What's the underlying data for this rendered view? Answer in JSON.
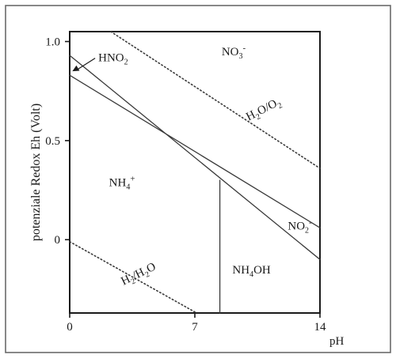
{
  "chart_data": {
    "type": "line",
    "title": "",
    "xlabel": "pH",
    "ylabel": "potenziale Redox Eh (Volt)",
    "xlim": [
      0,
      14
    ],
    "ylim": [
      -0.37,
      1.05
    ],
    "x_ticks": [
      {
        "value": 0,
        "label": "0"
      },
      {
        "value": 7,
        "label": "7"
      },
      {
        "value": 14,
        "label": "14"
      }
    ],
    "y_ticks": [
      {
        "value": 1.0,
        "label": "1.0"
      },
      {
        "value": 0.5,
        "label": "0.5"
      },
      {
        "value": 0,
        "label": "0"
      }
    ],
    "grid": false,
    "series": [
      {
        "name": "H2O/O2",
        "style": "dotted",
        "x": [
          2.3,
          14
        ],
        "y": [
          1.05,
          0.36
        ]
      },
      {
        "name": "H2/H2O",
        "style": "dotted",
        "x": [
          0,
          7.1
        ],
        "y": [
          -0.01,
          -0.37
        ]
      },
      {
        "style": "solid",
        "x": [
          0,
          14
        ],
        "y": [
          0.93,
          -0.1
        ]
      },
      {
        "style": "solid",
        "x": [
          0,
          14
        ],
        "y": [
          0.83,
          0.06
        ]
      },
      {
        "style": "solid",
        "x": [
          8.4,
          8.4
        ],
        "y": [
          0.3,
          -0.37
        ]
      }
    ],
    "annotations": [
      {
        "text": "NO3-",
        "base": "NO",
        "sub": "3",
        "sup": "-",
        "x": 8.5,
        "y": 0.93
      },
      {
        "text": "HNO2",
        "base": "HNO",
        "sub": "2",
        "sup": "",
        "x": 1.6,
        "y": 0.9,
        "arrow_to": {
          "x": 0.15,
          "y": 0.85
        }
      },
      {
        "text": "H2O/O2",
        "parts": [
          "H",
          "2",
          "O/O",
          "2"
        ],
        "x": 10,
        "y": 0.6,
        "rotate": -27
      },
      {
        "text": "NH4+",
        "base": "NH",
        "sub": "4",
        "sup": "+",
        "x": 2.2,
        "y": 0.27
      },
      {
        "text": "NO2-",
        "base": "NO",
        "sub": "2",
        "sup": "-",
        "x": 12.2,
        "y": 0.05
      },
      {
        "text": "NH4OH",
        "parts": [
          "NH",
          "4",
          "OH"
        ],
        "x": 9.1,
        "y": -0.17
      },
      {
        "text": "H2/H2O",
        "parts": [
          "H",
          "2",
          "/H",
          "2",
          "O"
        ],
        "x": 3.0,
        "y": -0.23,
        "rotate": -26
      }
    ]
  }
}
